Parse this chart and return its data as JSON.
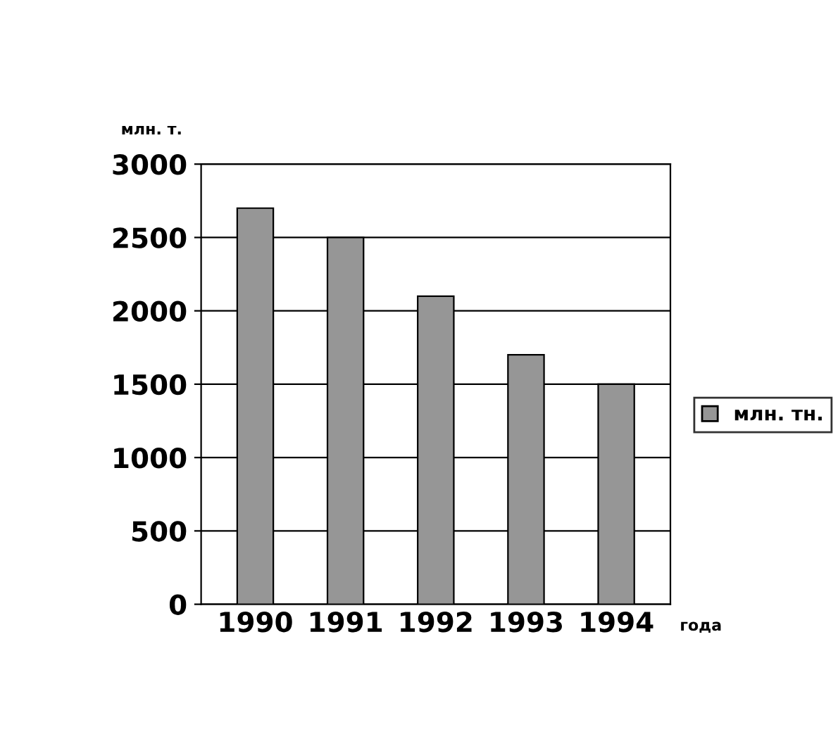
{
  "chart_data": {
    "type": "bar",
    "categories": [
      "1990",
      "1991",
      "1992",
      "1993",
      "1994"
    ],
    "series": [
      {
        "name": "млн. тн.",
        "color": "#969696",
        "values": [
          2700,
          2500,
          2100,
          1700,
          1500
        ]
      }
    ],
    "ylabel": "млн. т.",
    "xlabel": "года",
    "ylim": [
      0,
      3000
    ],
    "yticks": [
      0,
      500,
      1000,
      1500,
      2000,
      2500,
      3000
    ],
    "grid": "y",
    "legend": "right"
  }
}
